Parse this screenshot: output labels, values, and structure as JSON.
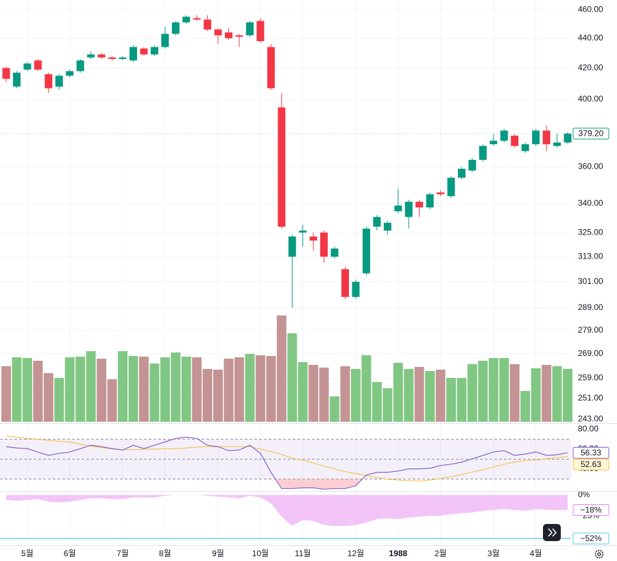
{
  "chart_data": [
    {
      "type": "candlestick",
      "categories": [
        null,
        null,
        "5월",
        null,
        null,
        null,
        "6월",
        null,
        null,
        null,
        null,
        "7월",
        null,
        null,
        null,
        "8월",
        null,
        null,
        null,
        null,
        "9월",
        null,
        null,
        null,
        "10월",
        null,
        null,
        null,
        "11월",
        null,
        null,
        null,
        null,
        "12월",
        null,
        null,
        null,
        "1988",
        null,
        null,
        null,
        "2월",
        null,
        null,
        null,
        null,
        "3월",
        null,
        null,
        null,
        "4월",
        null,
        null,
        null
      ],
      "open": [
        420,
        408,
        419,
        425,
        416,
        408,
        415,
        418,
        427,
        429,
        427,
        426,
        425,
        433,
        429,
        434,
        443,
        451,
        454,
        453,
        446,
        444,
        442,
        442,
        452,
        434,
        395,
        313,
        325,
        323,
        325,
        313,
        307,
        294,
        305,
        328,
        326,
        336,
        333,
        341,
        338,
        346,
        344,
        354,
        358,
        364,
        373,
        375,
        378,
        369,
        373,
        381,
        372,
        374
      ],
      "high": [
        421,
        418,
        424,
        426,
        417,
        416,
        419,
        426,
        431,
        430,
        428,
        428,
        435,
        434,
        435,
        448,
        452,
        456,
        456,
        456,
        447,
        447,
        443,
        452,
        454,
        436,
        404,
        324,
        329,
        325,
        326,
        318,
        308,
        302,
        328,
        334,
        331,
        348,
        342,
        342,
        346,
        347,
        355,
        360,
        365,
        373,
        379,
        382,
        379,
        374,
        382,
        384,
        379,
        380
      ],
      "low": [
        411,
        407,
        418,
        418,
        404,
        406,
        414,
        417,
        426,
        426,
        425,
        425,
        424,
        428,
        428,
        433,
        442,
        450,
        452,
        445,
        436,
        439,
        434,
        441,
        437,
        406,
        327,
        289,
        318,
        316,
        310,
        312,
        293,
        293,
        304,
        326,
        324,
        335,
        327,
        333,
        337,
        344,
        343,
        353,
        357,
        363,
        372,
        374,
        371,
        368,
        372,
        369,
        371,
        373
      ],
      "close": [
        413,
        417,
        423,
        419,
        407,
        415,
        418,
        425,
        429,
        427,
        426,
        427,
        434,
        429,
        434,
        443,
        451,
        455,
        453,
        446,
        442,
        440,
        441,
        451,
        438,
        407,
        328,
        323,
        326,
        321,
        313,
        317,
        294,
        301,
        327,
        333,
        330,
        339,
        341,
        338,
        345,
        345,
        354,
        359,
        364,
        372,
        375,
        381,
        372,
        373,
        381,
        373,
        374,
        379.2
      ],
      "last_value_label": "379.20",
      "ylim": [
        242,
        467
      ],
      "log_scale": true,
      "yticks": [
        {
          "value": 460,
          "label": "460.00"
        },
        {
          "value": 440,
          "label": "440.00"
        },
        {
          "value": 420,
          "label": "420.00"
        },
        {
          "value": 400,
          "label": "400.00"
        },
        {
          "value": 360,
          "label": "360.00"
        },
        {
          "value": 340,
          "label": "340.00"
        },
        {
          "value": 325,
          "label": "325.00"
        },
        {
          "value": 313,
          "label": "313.00"
        },
        {
          "value": 301,
          "label": "301.00"
        },
        {
          "value": 289,
          "label": "289.00"
        },
        {
          "value": 279,
          "label": "279.00"
        },
        {
          "value": 269,
          "label": "269.00"
        },
        {
          "value": 259,
          "label": "259.00"
        },
        {
          "value": 251,
          "label": "251.00"
        },
        {
          "value": 243,
          "label": "243.00"
        }
      ],
      "grid": true,
      "up_color": "#089981",
      "down_color": "#f23645",
      "volume": {
        "values": [
          81,
          94,
          93,
          89,
          71,
          64,
          94,
          95,
          103,
          92,
          62,
          103,
          96,
          95,
          85,
          94,
          101,
          95,
          94,
          77,
          76,
          92,
          94,
          99,
          97,
          96,
          155,
          129,
          87,
          83,
          79,
          37,
          81,
          77,
          97,
          58,
          49,
          86,
          77,
          80,
          74,
          76,
          64,
          64,
          84,
          89,
          93,
          93,
          84,
          45,
          78,
          83,
          81,
          77
        ],
        "up_color": "#81c784",
        "down_color": "#c49494"
      }
    },
    {
      "type": "line",
      "series": [
        {
          "color": "#7e57c2",
          "values": [
            62.5,
            61.2,
            60.5,
            57.1,
            53.7,
            55.8,
            57.1,
            60.5,
            63.9,
            62.5,
            60.5,
            59.2,
            63.9,
            60.5,
            63.9,
            67.3,
            70.7,
            72.0,
            70.7,
            63.9,
            62.5,
            58.5,
            59.2,
            63.9,
            55.8,
            36.8,
            20.5,
            20.5,
            21.2,
            21.2,
            19.8,
            20.5,
            20.5,
            23.2,
            34.1,
            36.8,
            36.8,
            38.1,
            40.2,
            40.2,
            40.8,
            43.6,
            44.9,
            47.0,
            50.3,
            53.7,
            57.1,
            58.5,
            53.7,
            55.1,
            57.1,
            53.7,
            54.4,
            56.33
          ],
          "last_value_label": "56.33"
        },
        {
          "color": "#f5c04a",
          "values": [
            73.2,
            72,
            70.7,
            69.8,
            68.8,
            67.8,
            67.2,
            65,
            63,
            61.5,
            60.2,
            59.2,
            59.5,
            59.8,
            60.1,
            60.4,
            60.5,
            61.2,
            62,
            62.5,
            62.5,
            62.5,
            62.5,
            62.5,
            60,
            57.6,
            54.5,
            51,
            49,
            46,
            43,
            40.2,
            37.5,
            35.4,
            33.5,
            31.5,
            29.8,
            29,
            28.4,
            28,
            29,
            30.5,
            32.5,
            34.5,
            37,
            39.5,
            42,
            45,
            47,
            48.5,
            49.2,
            50.3,
            51.5,
            52.63
          ],
          "last_value_label": "52.63"
        }
      ],
      "ylim": [
        18,
        84
      ],
      "yticks": [
        {
          "value": 80,
          "label": "80.00"
        },
        {
          "value": 60,
          "label": "60.00"
        },
        {
          "value": 40,
          "label": "40.00"
        }
      ],
      "levels": [
        70,
        50,
        30
      ]
    },
    {
      "type": "area",
      "values": [
        -6,
        -7,
        -6,
        -5,
        -8,
        -9,
        -8,
        -6,
        -4,
        -4,
        -5,
        -5,
        -3,
        -3,
        -3,
        -1,
        0,
        0,
        0,
        -1,
        -2,
        -3,
        -4,
        -1,
        -3,
        -10,
        -26,
        -37,
        -30,
        -31,
        -36,
        -37,
        -37,
        -36,
        -33,
        -29,
        -28,
        -29,
        -27,
        -26,
        -25,
        -25,
        -23,
        -22,
        -21,
        -19,
        -18,
        -17,
        -18,
        -19,
        -17,
        -18,
        -18,
        -18
      ],
      "last_value_label": "−18%",
      "color": "#f3c4f8",
      "ylim": [
        -56,
        3
      ],
      "yticks": [
        {
          "value": 0,
          "label": "0%"
        },
        {
          "value": -25,
          "label": "−25%"
        }
      ],
      "reference_line": {
        "value": -52,
        "label": "−52%",
        "color": "#4dd0e1"
      }
    }
  ]
}
